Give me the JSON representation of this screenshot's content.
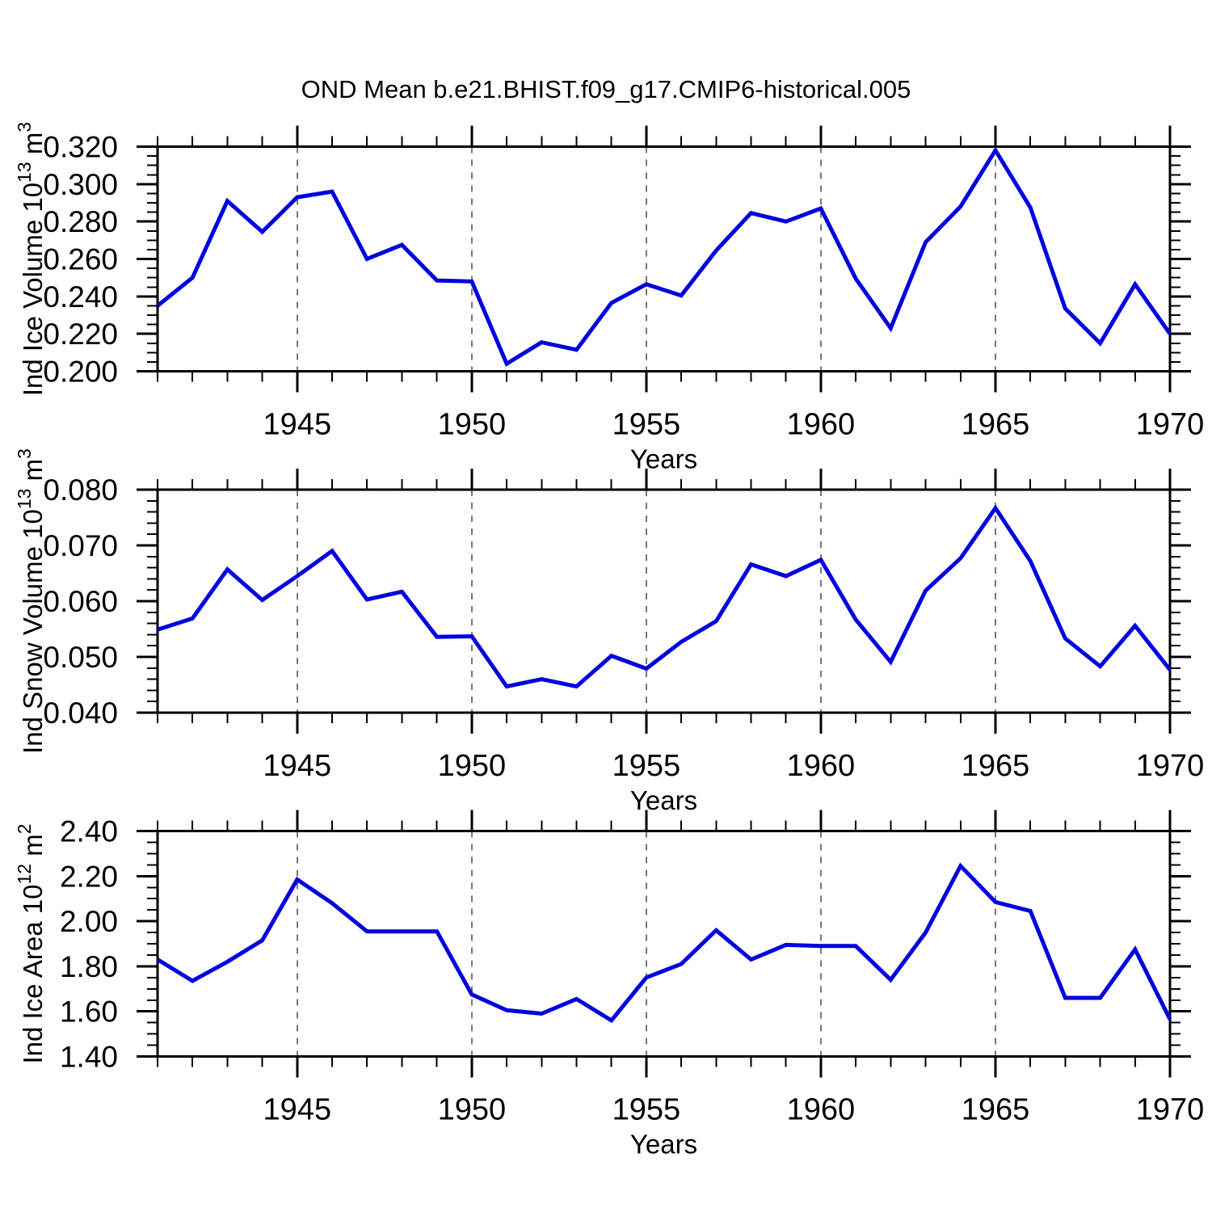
{
  "title": "OND Mean b.e21.BHIST.f09_g17.CMIP6-historical.005",
  "colors": {
    "line": "#0000dd",
    "grid": "#777777",
    "axis": "#000000",
    "background": "#ffffff"
  },
  "x": {
    "label": "Years",
    "range": [
      1941,
      1970
    ],
    "years": [
      1941,
      1942,
      1943,
      1944,
      1945,
      1946,
      1947,
      1948,
      1949,
      1950,
      1951,
      1952,
      1953,
      1954,
      1955,
      1956,
      1957,
      1958,
      1959,
      1960,
      1961,
      1962,
      1963,
      1964,
      1965,
      1966,
      1967,
      1968,
      1969,
      1970
    ],
    "major_ticks": [
      1945,
      1950,
      1955,
      1960,
      1965,
      1970
    ],
    "tick_labels": [
      "1945",
      "1950",
      "1955",
      "1960",
      "1965",
      "1970"
    ],
    "minor_step": 1,
    "gridline_years": [
      1945,
      1950,
      1955,
      1960,
      1965
    ]
  },
  "chart_data": [
    {
      "type": "line",
      "name": "ice-volume",
      "ylabel": "Ind Ice Volume 10^13 m^3",
      "ylabel_segments": [
        {
          "t": "Ind Ice Volume 10"
        },
        {
          "t": "13",
          "sup": true
        },
        {
          "t": " m"
        },
        {
          "t": "3",
          "sup": true
        }
      ],
      "xlabel": "Years",
      "y_range": [
        0.2,
        0.32
      ],
      "y_minor_step": 0.005,
      "y_ticks": [
        {
          "v": 0.2,
          "label": "0.200"
        },
        {
          "v": 0.22,
          "label": "0.220"
        },
        {
          "v": 0.24,
          "label": "0.240"
        },
        {
          "v": 0.26,
          "label": "0.260"
        },
        {
          "v": 0.28,
          "label": "0.280"
        },
        {
          "v": 0.3,
          "label": "0.300"
        },
        {
          "v": 0.32,
          "label": "0.320"
        }
      ],
      "values": [
        0.235,
        0.25,
        0.291,
        0.2745,
        0.293,
        0.296,
        0.26,
        0.2675,
        0.2485,
        0.248,
        0.204,
        0.2155,
        0.2115,
        0.2365,
        0.2465,
        0.2405,
        0.2645,
        0.2845,
        0.28,
        0.287,
        0.2495,
        0.223,
        0.269,
        0.288,
        0.318,
        0.2875,
        0.2335,
        0.215,
        0.2465,
        0.22
      ]
    },
    {
      "type": "line",
      "name": "snow-volume",
      "ylabel": "Ind Snow Volume 10^13 m^3",
      "ylabel_segments": [
        {
          "t": "Ind Snow Volume 10"
        },
        {
          "t": "13",
          "sup": true
        },
        {
          "t": " m"
        },
        {
          "t": "3",
          "sup": true
        }
      ],
      "xlabel": "Years",
      "y_range": [
        0.04,
        0.08
      ],
      "y_minor_step": 0.002,
      "y_ticks": [
        {
          "v": 0.04,
          "label": "0.040"
        },
        {
          "v": 0.05,
          "label": "0.050"
        },
        {
          "v": 0.06,
          "label": "0.060"
        },
        {
          "v": 0.07,
          "label": "0.070"
        },
        {
          "v": 0.08,
          "label": "0.080"
        }
      ],
      "values": [
        0.0549,
        0.0569,
        0.0657,
        0.0602,
        0.0645,
        0.069,
        0.0603,
        0.0617,
        0.0536,
        0.0537,
        0.0447,
        0.046,
        0.0447,
        0.0502,
        0.0479,
        0.0527,
        0.0564,
        0.0666,
        0.0645,
        0.0674,
        0.0567,
        0.0491,
        0.0619,
        0.0677,
        0.0767,
        0.0672,
        0.0533,
        0.0483,
        0.0556,
        0.0477
      ]
    },
    {
      "type": "line",
      "name": "ice-area",
      "ylabel": "Ind Ice Area 10^12 m^2",
      "ylabel_segments": [
        {
          "t": "Ind Ice Area 10"
        },
        {
          "t": "12",
          "sup": true
        },
        {
          "t": " m"
        },
        {
          "t": "2",
          "sup": true
        }
      ],
      "xlabel": "Years",
      "y_range": [
        1.4,
        2.4
      ],
      "y_minor_step": 0.05,
      "y_ticks": [
        {
          "v": 1.4,
          "label": "1.40"
        },
        {
          "v": 1.6,
          "label": "1.60"
        },
        {
          "v": 1.8,
          "label": "1.80"
        },
        {
          "v": 2.0,
          "label": "2.00"
        },
        {
          "v": 2.2,
          "label": "2.20"
        },
        {
          "v": 2.4,
          "label": "2.40"
        }
      ],
      "values": [
        1.83,
        1.735,
        1.82,
        1.915,
        2.185,
        2.08,
        1.955,
        1.955,
        1.955,
        1.675,
        1.605,
        1.59,
        1.655,
        1.56,
        1.75,
        1.81,
        1.96,
        1.83,
        1.895,
        1.89,
        1.89,
        1.74,
        1.95,
        2.245,
        2.085,
        2.045,
        1.66,
        1.66,
        1.875,
        1.565
      ]
    }
  ]
}
